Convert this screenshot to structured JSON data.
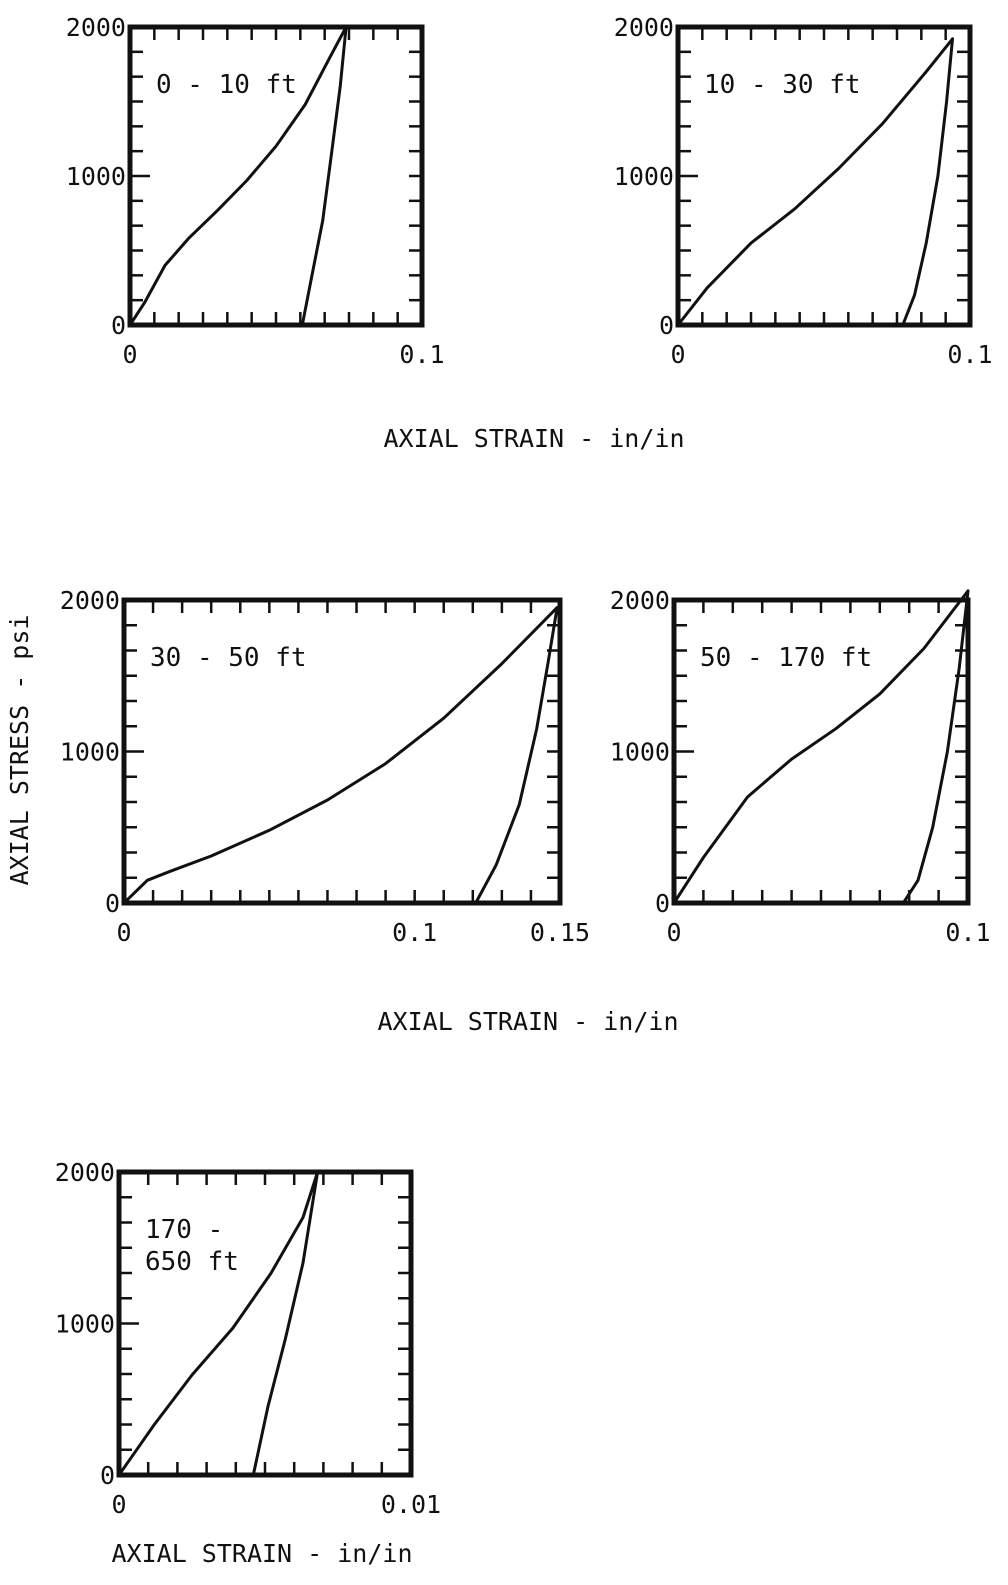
{
  "chart_data": [
    {
      "type": "line",
      "label": [
        "0 - 10 ft"
      ],
      "xlim": [
        0,
        0.1
      ],
      "ylim": [
        0,
        2000
      ],
      "x_ticks": [
        {
          "v": 0,
          "t": "0"
        },
        {
          "v": 0.1,
          "t": "0.1"
        }
      ],
      "y_ticks": [
        {
          "v": 0,
          "t": "0"
        },
        {
          "v": 1000,
          "t": "1000"
        },
        {
          "v": 2000,
          "t": "2000"
        }
      ],
      "series": [
        {
          "points": [
            [
              0,
              0
            ],
            [
              0.005,
              150
            ],
            [
              0.012,
              400
            ],
            [
              0.02,
              580
            ],
            [
              0.03,
              770
            ],
            [
              0.04,
              970
            ],
            [
              0.05,
              1200
            ],
            [
              0.06,
              1480
            ],
            [
              0.068,
              1780
            ],
            [
              0.074,
              2000
            ]
          ]
        },
        {
          "points": [
            [
              0.074,
              2000
            ],
            [
              0.072,
              1600
            ],
            [
              0.069,
              1150
            ],
            [
              0.066,
              700
            ],
            [
              0.062,
              300
            ],
            [
              0.059,
              0
            ]
          ]
        }
      ]
    },
    {
      "type": "line",
      "label": [
        "10 - 30 ft"
      ],
      "xlim": [
        0,
        0.1
      ],
      "ylim": [
        0,
        2000
      ],
      "x_ticks": [
        {
          "v": 0,
          "t": "0"
        },
        {
          "v": 0.1,
          "t": "0.1"
        }
      ],
      "y_ticks": [
        {
          "v": 0,
          "t": "0"
        },
        {
          "v": 1000,
          "t": "1000"
        },
        {
          "v": 2000,
          "t": "2000"
        }
      ],
      "series": [
        {
          "points": [
            [
              0,
              0
            ],
            [
              0.01,
              250
            ],
            [
              0.025,
              550
            ],
            [
              0.04,
              780
            ],
            [
              0.055,
              1050
            ],
            [
              0.07,
              1350
            ],
            [
              0.085,
              1700
            ],
            [
              0.094,
              1920
            ]
          ]
        },
        {
          "points": [
            [
              0.094,
              1920
            ],
            [
              0.092,
              1500
            ],
            [
              0.089,
              1000
            ],
            [
              0.085,
              550
            ],
            [
              0.081,
              200
            ],
            [
              0.077,
              0
            ]
          ]
        }
      ]
    },
    {
      "type": "line",
      "label": [
        "30 - 50 ft"
      ],
      "xlim": [
        0,
        0.15
      ],
      "ylim": [
        0,
        2000
      ],
      "x_ticks": [
        {
          "v": 0,
          "t": "0"
        },
        {
          "v": 0.1,
          "t": "0.1"
        },
        {
          "v": 0.15,
          "t": "0.15"
        }
      ],
      "y_ticks": [
        {
          "v": 0,
          "t": "0"
        },
        {
          "v": 1000,
          "t": "1000"
        },
        {
          "v": 2000,
          "t": "2000"
        }
      ],
      "series": [
        {
          "points": [
            [
              0,
              0
            ],
            [
              0.008,
              150
            ],
            [
              0.016,
              210
            ],
            [
              0.03,
              310
            ],
            [
              0.05,
              480
            ],
            [
              0.07,
              680
            ],
            [
              0.09,
              920
            ],
            [
              0.11,
              1220
            ],
            [
              0.13,
              1580
            ],
            [
              0.149,
              1950
            ]
          ]
        },
        {
          "points": [
            [
              0.149,
              1950
            ],
            [
              0.146,
              1600
            ],
            [
              0.142,
              1150
            ],
            [
              0.136,
              650
            ],
            [
              0.128,
              250
            ],
            [
              0.121,
              0
            ]
          ]
        }
      ]
    },
    {
      "type": "line",
      "label": [
        "50 - 170 ft"
      ],
      "xlim": [
        0,
        0.1
      ],
      "ylim": [
        0,
        2000
      ],
      "x_ticks": [
        {
          "v": 0,
          "t": "0"
        },
        {
          "v": 0.1,
          "t": "0.1"
        }
      ],
      "y_ticks": [
        {
          "v": 0,
          "t": "0"
        },
        {
          "v": 1000,
          "t": "1000"
        },
        {
          "v": 2000,
          "t": "2000"
        }
      ],
      "series": [
        {
          "points": [
            [
              0,
              0
            ],
            [
              0.01,
              300
            ],
            [
              0.025,
              700
            ],
            [
              0.04,
              950
            ],
            [
              0.055,
              1150
            ],
            [
              0.07,
              1380
            ],
            [
              0.085,
              1680
            ],
            [
              0.1,
              2060
            ]
          ]
        },
        {
          "points": [
            [
              0.1,
              2060
            ],
            [
              0.097,
              1550
            ],
            [
              0.093,
              1000
            ],
            [
              0.088,
              500
            ],
            [
              0.083,
              150
            ],
            [
              0.078,
              0
            ]
          ]
        }
      ]
    },
    {
      "type": "line",
      "label": [
        "170 -",
        "650 ft"
      ],
      "xlim": [
        0,
        0.01
      ],
      "ylim": [
        0,
        2000
      ],
      "x_ticks": [
        {
          "v": 0,
          "t": "0"
        },
        {
          "v": 0.01,
          "t": "0.01"
        }
      ],
      "y_ticks": [
        {
          "v": 0,
          "t": "0"
        },
        {
          "v": 1000,
          "t": "1000"
        },
        {
          "v": 2000,
          "t": "2000"
        }
      ],
      "series": [
        {
          "points": [
            [
              0,
              0
            ],
            [
              0.0012,
              330
            ],
            [
              0.0025,
              660
            ],
            [
              0.0039,
              970
            ],
            [
              0.0052,
              1330
            ],
            [
              0.0063,
              1700
            ],
            [
              0.0068,
              2000
            ]
          ]
        },
        {
          "points": [
            [
              0.0068,
              2000
            ],
            [
              0.0063,
              1400
            ],
            [
              0.0057,
              900
            ],
            [
              0.0051,
              450
            ],
            [
              0.0046,
              0
            ]
          ]
        }
      ]
    }
  ],
  "axis_labels": {
    "x_top": "AXIAL STRAIN - in/in",
    "x_middle": "AXIAL STRAIN - in/in",
    "x_bottom": "AXIAL STRAIN - in/in",
    "y": "AXIAL STRESS - psi"
  }
}
